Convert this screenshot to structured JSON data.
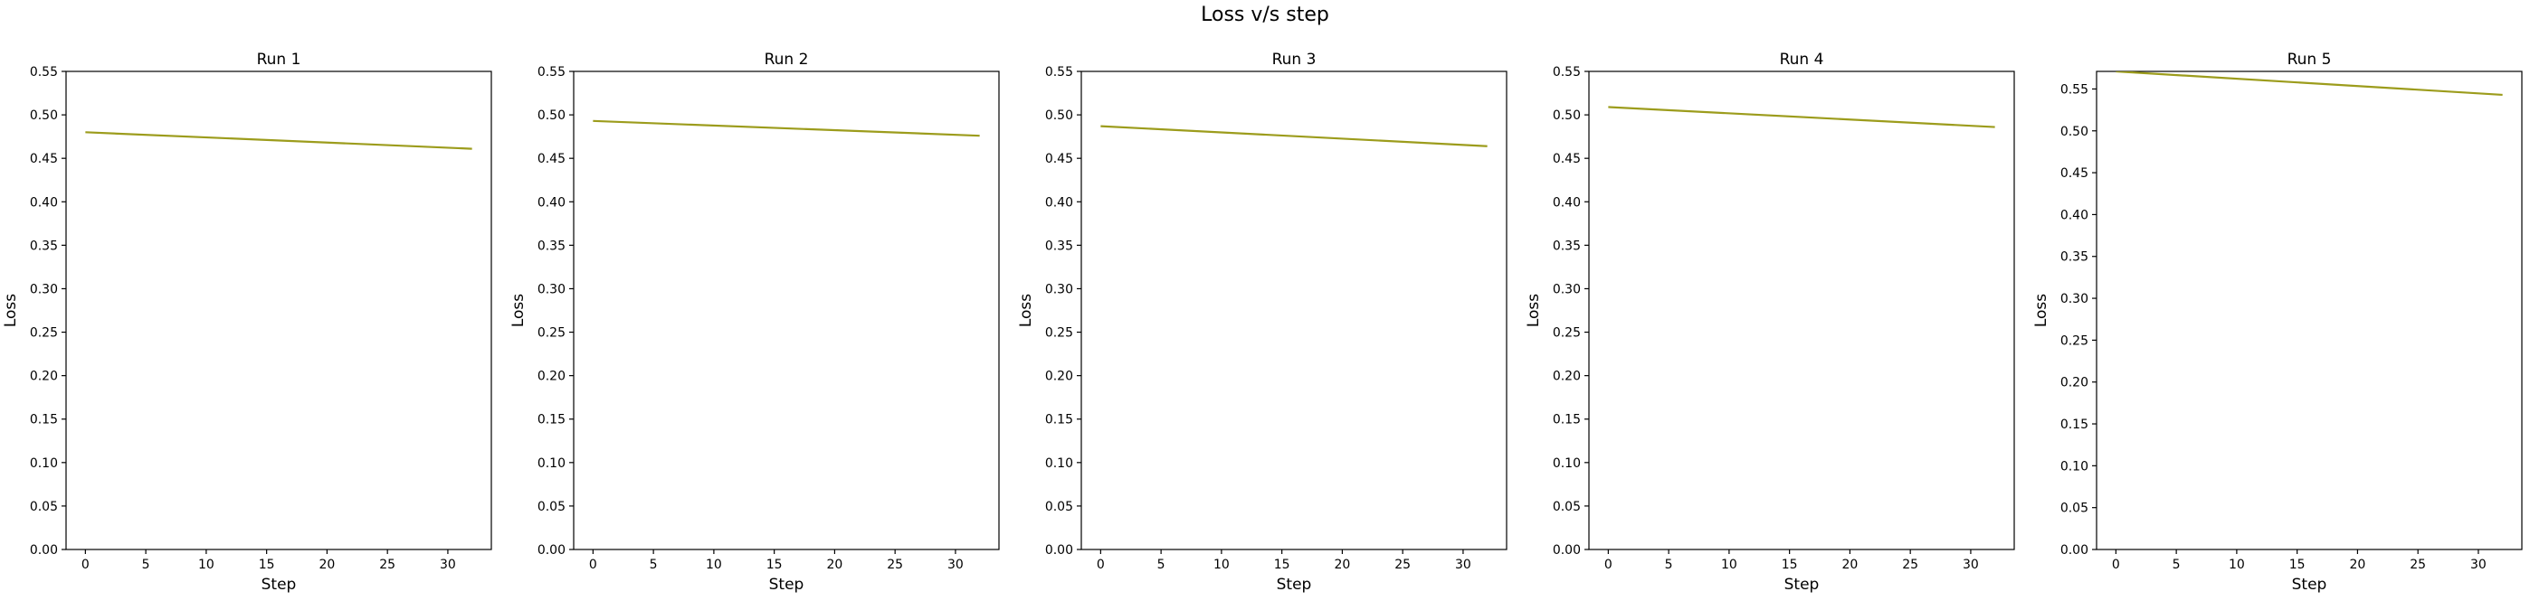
{
  "figure_title": "Loss v/s step",
  "colors": {
    "line": "#9c9c1c",
    "axis": "#000000",
    "background": "#ffffff"
  },
  "chart_data": [
    {
      "type": "line",
      "title": "Run 1",
      "xlabel": "Step",
      "ylabel": "Loss",
      "xlim": [
        -1.6,
        33.6
      ],
      "ylim": [
        0,
        0.55
      ],
      "xticks": [
        0,
        5,
        10,
        15,
        20,
        25,
        30
      ],
      "yticks": [
        0.0,
        0.05,
        0.1,
        0.15,
        0.2,
        0.25,
        0.3,
        0.35,
        0.4,
        0.45,
        0.5,
        0.55
      ],
      "grid": false,
      "series": [
        {
          "x": [
            0,
            32
          ],
          "values": [
            0.48,
            0.461
          ]
        }
      ]
    },
    {
      "type": "line",
      "title": "Run 2",
      "xlabel": "Step",
      "ylabel": "Loss",
      "xlim": [
        -1.6,
        33.6
      ],
      "ylim": [
        0,
        0.55
      ],
      "xticks": [
        0,
        5,
        10,
        15,
        20,
        25,
        30
      ],
      "yticks": [
        0.0,
        0.05,
        0.1,
        0.15,
        0.2,
        0.25,
        0.3,
        0.35,
        0.4,
        0.45,
        0.5,
        0.55
      ],
      "grid": false,
      "series": [
        {
          "x": [
            0,
            32
          ],
          "values": [
            0.493,
            0.476
          ]
        }
      ]
    },
    {
      "type": "line",
      "title": "Run 3",
      "xlabel": "Step",
      "ylabel": "Loss",
      "xlim": [
        -1.6,
        33.6
      ],
      "ylim": [
        0,
        0.55
      ],
      "xticks": [
        0,
        5,
        10,
        15,
        20,
        25,
        30
      ],
      "yticks": [
        0.0,
        0.05,
        0.1,
        0.15,
        0.2,
        0.25,
        0.3,
        0.35,
        0.4,
        0.45,
        0.5,
        0.55
      ],
      "grid": false,
      "series": [
        {
          "x": [
            0,
            32
          ],
          "values": [
            0.487,
            0.464
          ]
        }
      ]
    },
    {
      "type": "line",
      "title": "Run 4",
      "xlabel": "Step",
      "ylabel": "Loss",
      "xlim": [
        -1.6,
        33.6
      ],
      "ylim": [
        0,
        0.55
      ],
      "xticks": [
        0,
        5,
        10,
        15,
        20,
        25,
        30
      ],
      "yticks": [
        0.0,
        0.05,
        0.1,
        0.15,
        0.2,
        0.25,
        0.3,
        0.35,
        0.4,
        0.45,
        0.5,
        0.55
      ],
      "grid": false,
      "series": [
        {
          "x": [
            0,
            32
          ],
          "values": [
            0.509,
            0.486
          ]
        }
      ]
    },
    {
      "type": "line",
      "title": "Run 5",
      "xlabel": "Step",
      "ylabel": "Loss",
      "xlim": [
        -1.6,
        33.6
      ],
      "ylim": [
        0,
        0.571
      ],
      "xticks": [
        0,
        5,
        10,
        15,
        20,
        25,
        30
      ],
      "yticks": [
        0.0,
        0.05,
        0.1,
        0.15,
        0.2,
        0.25,
        0.3,
        0.35,
        0.4,
        0.45,
        0.5,
        0.55
      ],
      "grid": false,
      "series": [
        {
          "x": [
            0,
            32
          ],
          "values": [
            0.571,
            0.543
          ]
        }
      ]
    }
  ]
}
